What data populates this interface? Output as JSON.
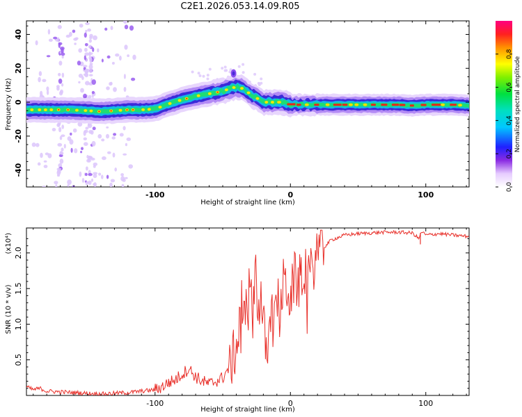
{
  "chart_data": [
    {
      "type": "heatmap",
      "title": "C2E1.2026.053.14.09.R05",
      "xlabel": "Height of straight line (km)",
      "ylabel": "Frequency (Hz)",
      "xlim": [
        -195,
        132
      ],
      "ylim": [
        -50,
        48
      ],
      "xticks": [
        -100,
        0,
        100
      ],
      "yticks": [
        -40,
        -20,
        0,
        20,
        40
      ],
      "colorbar": {
        "label": "Normalized spectral amplitude",
        "range": [
          0,
          1
        ],
        "ticks": [
          "0.0",
          "0.2",
          "0.4",
          "0.6",
          "0.8"
        ]
      },
      "ridge": {
        "name": "dominant frequency track",
        "x": [
          -195,
          -180,
          -165,
          -150,
          -140,
          -130,
          -120,
          -110,
          -100,
          -90,
          -80,
          -70,
          -60,
          -50,
          -45,
          -40,
          -35,
          -30,
          -25,
          -20,
          -15,
          -10,
          -5,
          0,
          20,
          40,
          60,
          80,
          90,
          100,
          110,
          120,
          132
        ],
        "y": [
          -4.5,
          -4.5,
          -4.5,
          -5,
          -5.5,
          -5,
          -4.5,
          -4.5,
          -4,
          -1,
          1.5,
          3.5,
          5,
          6.5,
          8,
          9,
          8,
          5,
          2.5,
          0,
          0,
          0,
          0,
          -1.5,
          -1.5,
          -1.5,
          -1.5,
          -1.5,
          -2,
          -1.5,
          -1.5,
          -1.5,
          -2
        ]
      },
      "peak_annotation": {
        "x": -42,
        "y": 17
      }
    },
    {
      "type": "line",
      "xlabel": "Height of straight line (km)",
      "ylabel": "SNR (10 * v/v)",
      "scale_note": "(x10⁴)",
      "xlim": [
        -195,
        132
      ],
      "ylim": [
        0,
        2.35
      ],
      "xticks": [
        -100,
        0,
        100
      ],
      "yticks": [
        0.5,
        1.0,
        1.5,
        2.0
      ],
      "ytick_labels": [
        "0.5",
        "1.0",
        "1.5",
        "2.0"
      ],
      "series": [
        {
          "name": "SNR",
          "color": "#e8302a",
          "x": [
            -195,
            -190,
            -185,
            -180,
            -170,
            -160,
            -150,
            -140,
            -130,
            -120,
            -110,
            -100,
            -95,
            -90,
            -85,
            -80,
            -75,
            -70,
            -65,
            -60,
            -55,
            -50,
            -45,
            -42,
            -40,
            -38,
            -36,
            -34,
            -32,
            -30,
            -28,
            -26,
            -24,
            -22,
            -20,
            -18,
            -15,
            -12,
            -10,
            -8,
            -5,
            -2,
            0,
            3,
            6,
            10,
            15,
            20,
            25,
            30,
            40,
            50,
            60,
            70,
            80,
            90,
            95,
            97,
            100,
            110,
            120,
            132
          ],
          "y": [
            0.12,
            0.08,
            0.1,
            0.06,
            0.05,
            0.04,
            0.03,
            0.02,
            0.03,
            0.04,
            0.06,
            0.08,
            0.12,
            0.18,
            0.22,
            0.3,
            0.38,
            0.26,
            0.2,
            0.16,
            0.2,
            0.25,
            0.4,
            0.55,
            0.7,
            0.9,
            1.3,
            0.95,
            1.4,
            1.5,
            1.1,
            1.9,
            1.2,
            1.4,
            1.0,
            0.6,
            1.3,
            0.9,
            1.45,
            1.1,
            1.6,
            1.5,
            1.35,
            1.65,
            1.55,
            1.8,
            1.7,
            2.05,
            2.08,
            2.18,
            2.25,
            2.27,
            2.28,
            2.29,
            2.29,
            2.28,
            2.2,
            2.3,
            2.25,
            2.27,
            2.25,
            2.23
          ]
        }
      ]
    }
  ]
}
